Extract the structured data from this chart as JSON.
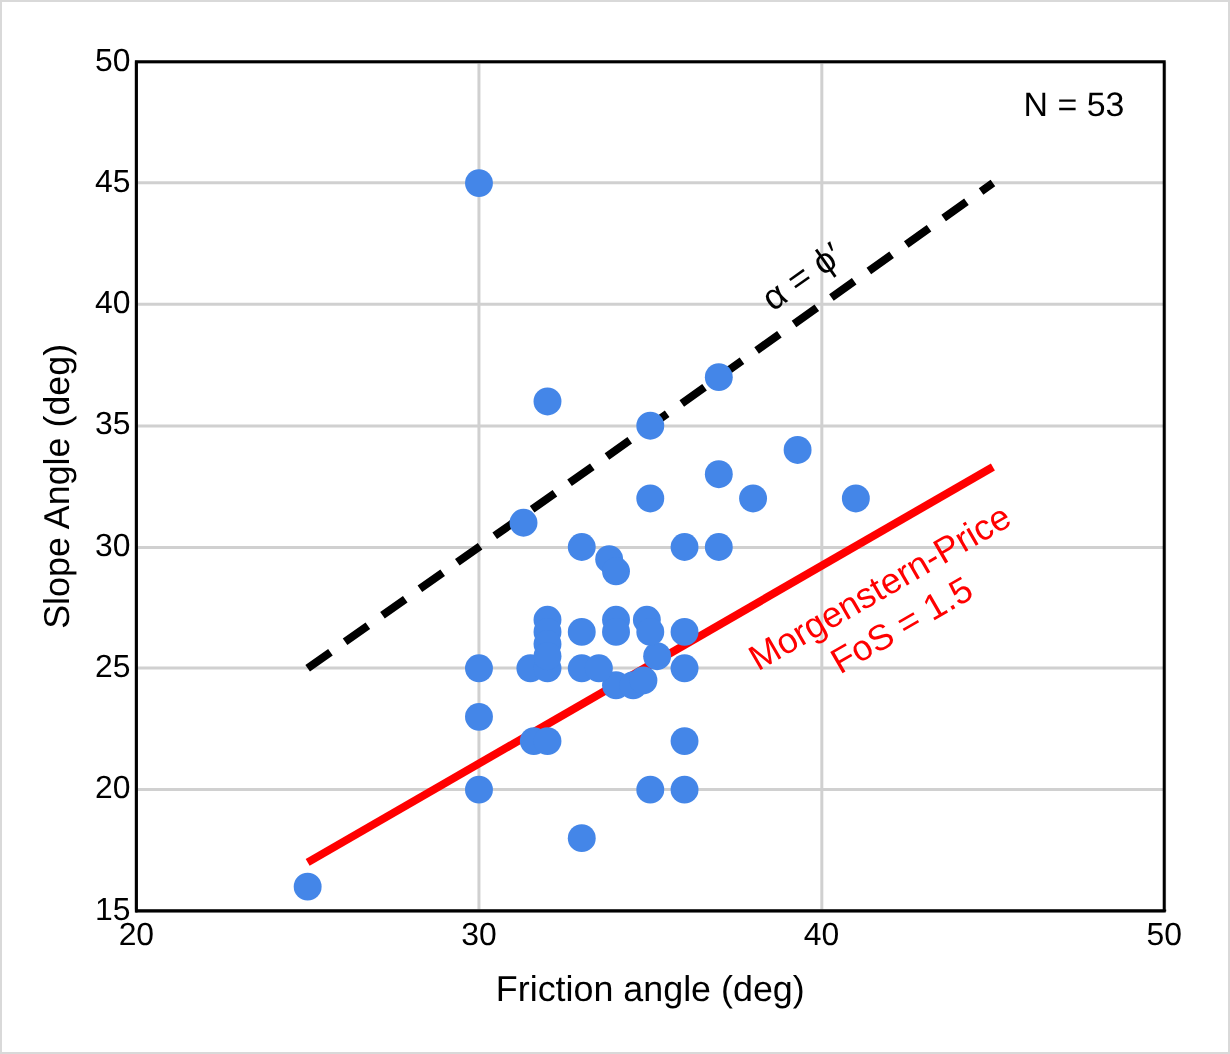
{
  "chart_data": {
    "type": "scatter",
    "xlabel": "Friction angle (deg)",
    "ylabel": "Slope Angle (deg)",
    "xlim": [
      20,
      50
    ],
    "xticks": [
      20,
      30,
      40,
      50
    ],
    "ylim": [
      15,
      50
    ],
    "yticks": [
      15,
      20,
      25,
      30,
      35,
      40,
      45,
      50
    ],
    "grid": true,
    "legend": false,
    "marker": "circle",
    "series": [
      {
        "color": "#4486e8",
        "x": [
          25,
          30,
          30,
          30,
          30,
          31.3,
          31.5,
          31.6,
          32,
          32,
          32,
          32,
          32,
          32,
          33,
          33,
          33,
          33,
          33.8,
          34,
          34,
          34,
          34,
          34.5,
          35,
          35,
          35,
          36,
          36,
          36,
          36,
          36,
          37,
          37,
          37,
          38,
          39.3,
          41,
          34.8,
          35.2,
          34.9,
          32,
          33.5,
          35
        ],
        "values": [
          16,
          45,
          25,
          23,
          20,
          31,
          25,
          22,
          36,
          27,
          26.5,
          26,
          25,
          22,
          30,
          26.5,
          25,
          18,
          29.5,
          29,
          27,
          26.5,
          24.3,
          24.3,
          35,
          32,
          20,
          30,
          26.5,
          25,
          22,
          20,
          37,
          33,
          30,
          32,
          34,
          32,
          24.5,
          25.5,
          27,
          25.5,
          25,
          26.5
        ]
      },
      {
        "type": "line",
        "name": "α = ϕ′",
        "color": "#000000",
        "line_style": "dashed",
        "marker": "none",
        "x": [
          25,
          45
        ],
        "values": [
          25,
          45
        ]
      },
      {
        "type": "line",
        "name": "Morgenstern-Price\nFoS = 1.5",
        "color": "#ff0000",
        "line_style": "solid",
        "marker": "none",
        "x": [
          25,
          45
        ],
        "values": [
          17,
          33.3
        ]
      }
    ],
    "annotations": [
      "N = 53"
    ]
  }
}
